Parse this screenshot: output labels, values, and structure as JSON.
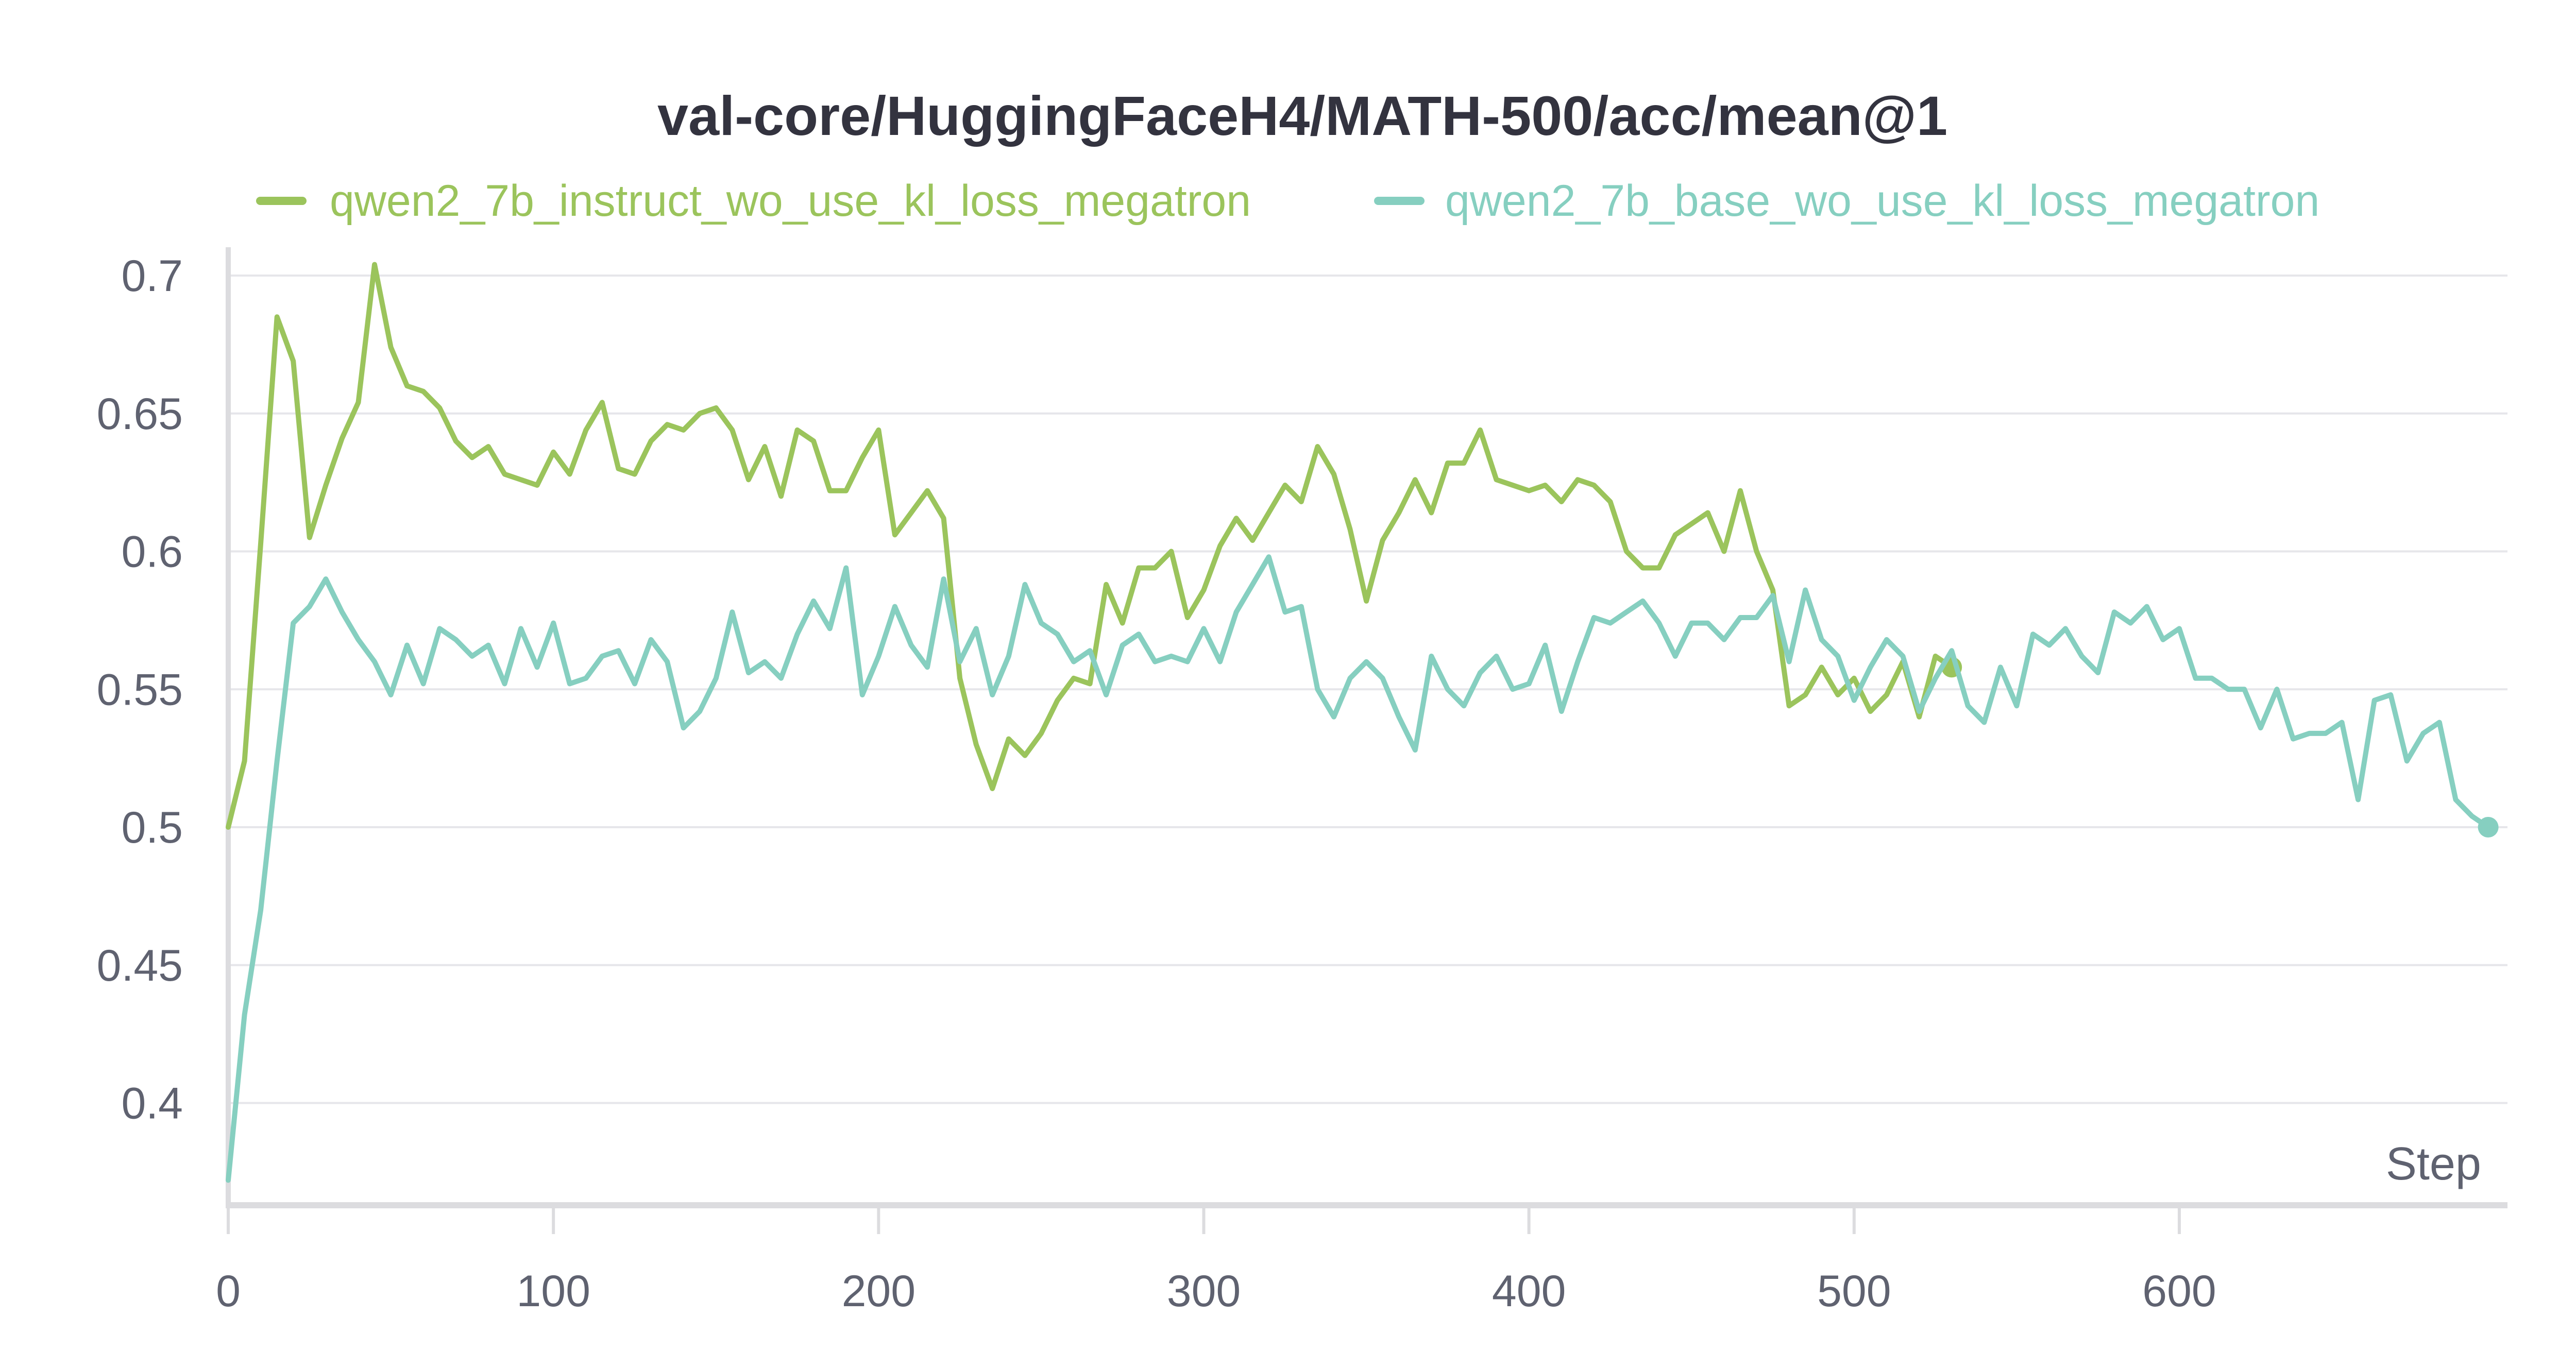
{
  "chart_data": {
    "type": "line",
    "title": "val-core/HuggingFaceH4/MATH-500/acc/mean@1",
    "xlabel": "Step",
    "ylabel": "",
    "xlim": [
      0,
      695
    ],
    "ylim": [
      0.37,
      0.705
    ],
    "xticks": [
      0,
      100,
      200,
      300,
      400,
      500,
      600
    ],
    "yticks": [
      0.4,
      0.45,
      0.5,
      0.55,
      0.6,
      0.65,
      0.7
    ],
    "ytick_labels": [
      "0.4",
      "0.45",
      "0.5",
      "0.55",
      "0.6",
      "0.65",
      "0.7"
    ],
    "grid": true,
    "legend_position": "top",
    "series": [
      {
        "name": "qwen2_7b_instruct_wo_use_kl_loss_megatron",
        "color": "#9bc45c",
        "x": [
          0,
          5,
          10,
          15,
          20,
          25,
          30,
          35,
          40,
          45,
          50,
          55,
          60,
          65,
          70,
          75,
          80,
          85,
          90,
          95,
          100,
          105,
          110,
          115,
          120,
          125,
          130,
          135,
          140,
          145,
          150,
          155,
          160,
          165,
          170,
          175,
          180,
          185,
          190,
          195,
          200,
          205,
          210,
          215,
          220,
          225,
          230,
          235,
          240,
          245,
          250,
          255,
          260,
          265,
          270,
          275,
          280,
          285,
          290,
          295,
          300,
          305,
          310,
          315,
          320,
          325,
          330,
          335,
          340,
          345,
          350,
          355,
          360,
          365,
          370,
          375,
          380,
          385,
          390,
          395,
          400,
          405,
          410,
          415,
          420,
          425,
          430,
          435,
          440,
          445,
          450,
          455,
          460,
          465,
          470,
          475,
          480,
          485,
          490,
          495,
          500,
          505,
          510,
          515,
          520,
          525,
          530
        ],
        "y": [
          0.5,
          0.524,
          0.603,
          0.685,
          0.669,
          0.605,
          0.624,
          0.641,
          0.654,
          0.704,
          0.674,
          0.66,
          0.658,
          0.652,
          0.64,
          0.634,
          0.638,
          0.628,
          0.626,
          0.624,
          0.636,
          0.628,
          0.644,
          0.654,
          0.63,
          0.628,
          0.64,
          0.646,
          0.644,
          0.65,
          0.652,
          0.644,
          0.626,
          0.638,
          0.62,
          0.644,
          0.64,
          0.622,
          0.622,
          0.634,
          0.644,
          0.606,
          0.614,
          0.622,
          0.612,
          0.554,
          0.53,
          0.514,
          0.532,
          0.526,
          0.534,
          0.546,
          0.554,
          0.552,
          0.588,
          0.574,
          0.594,
          0.594,
          0.6,
          0.576,
          0.586,
          0.602,
          0.612,
          0.604,
          0.614,
          0.624,
          0.618,
          0.638,
          0.628,
          0.608,
          0.582,
          0.604,
          0.614,
          0.626,
          0.614,
          0.632,
          0.632,
          0.644,
          0.626,
          0.624,
          0.622,
          0.624,
          0.618,
          0.626,
          0.624,
          0.618,
          0.6,
          0.594,
          0.594,
          0.606,
          0.61,
          0.614,
          0.6,
          0.622,
          0.6,
          0.586,
          0.544,
          0.548,
          0.558,
          0.548,
          0.554,
          0.542,
          0.548,
          0.56,
          0.54,
          0.562,
          0.558
        ]
      },
      {
        "name": "qwen2_7b_base_wo_use_kl_loss_megatron",
        "color": "#86cfc0",
        "x": [
          0,
          5,
          10,
          15,
          20,
          25,
          30,
          35,
          40,
          45,
          50,
          55,
          60,
          65,
          70,
          75,
          80,
          85,
          90,
          95,
          100,
          105,
          110,
          115,
          120,
          125,
          130,
          135,
          140,
          145,
          150,
          155,
          160,
          165,
          170,
          175,
          180,
          185,
          190,
          195,
          200,
          205,
          210,
          215,
          220,
          225,
          230,
          235,
          240,
          245,
          250,
          255,
          260,
          265,
          270,
          275,
          280,
          285,
          290,
          295,
          300,
          305,
          310,
          315,
          320,
          325,
          330,
          335,
          340,
          345,
          350,
          355,
          360,
          365,
          370,
          375,
          380,
          385,
          390,
          395,
          400,
          405,
          410,
          415,
          420,
          425,
          430,
          435,
          440,
          445,
          450,
          455,
          460,
          465,
          470,
          475,
          480,
          485,
          490,
          495,
          500,
          505,
          510,
          515,
          520,
          525,
          530,
          535,
          540,
          545,
          550,
          555,
          560,
          565,
          570,
          575,
          580,
          585,
          590,
          595,
          600,
          605,
          610,
          615,
          620,
          625,
          630,
          635,
          640,
          645,
          650,
          655,
          660,
          665,
          670,
          675,
          680,
          685,
          690,
          695
        ],
        "y": [
          0.372,
          0.432,
          0.47,
          0.524,
          0.574,
          0.58,
          0.59,
          0.578,
          0.568,
          0.56,
          0.548,
          0.566,
          0.552,
          0.572,
          0.568,
          0.562,
          0.566,
          0.552,
          0.572,
          0.558,
          0.574,
          0.552,
          0.554,
          0.562,
          0.564,
          0.552,
          0.568,
          0.56,
          0.536,
          0.542,
          0.554,
          0.578,
          0.556,
          0.56,
          0.554,
          0.57,
          0.582,
          0.572,
          0.594,
          0.548,
          0.562,
          0.58,
          0.566,
          0.558,
          0.59,
          0.56,
          0.572,
          0.548,
          0.562,
          0.588,
          0.574,
          0.57,
          0.56,
          0.564,
          0.548,
          0.566,
          0.57,
          0.56,
          0.562,
          0.56,
          0.572,
          0.56,
          0.578,
          0.588,
          0.598,
          0.578,
          0.58,
          0.55,
          0.54,
          0.554,
          0.56,
          0.554,
          0.54,
          0.528,
          0.562,
          0.55,
          0.544,
          0.556,
          0.562,
          0.55,
          0.552,
          0.566,
          0.542,
          0.56,
          0.576,
          0.574,
          0.578,
          0.582,
          0.574,
          0.562,
          0.574,
          0.574,
          0.568,
          0.576,
          0.576,
          0.584,
          0.56,
          0.586,
          0.568,
          0.562,
          0.546,
          0.558,
          0.568,
          0.562,
          0.542,
          0.554,
          0.564,
          0.544,
          0.538,
          0.558,
          0.544,
          0.57,
          0.566,
          0.572,
          0.562,
          0.556,
          0.578,
          0.574,
          0.58,
          0.568,
          0.572,
          0.554,
          0.554,
          0.55,
          0.55,
          0.536,
          0.55,
          0.532,
          0.534,
          0.534,
          0.538,
          0.51,
          0.546,
          0.548,
          0.524,
          0.534,
          0.538,
          0.51,
          0.504,
          0.5
        ]
      }
    ]
  }
}
